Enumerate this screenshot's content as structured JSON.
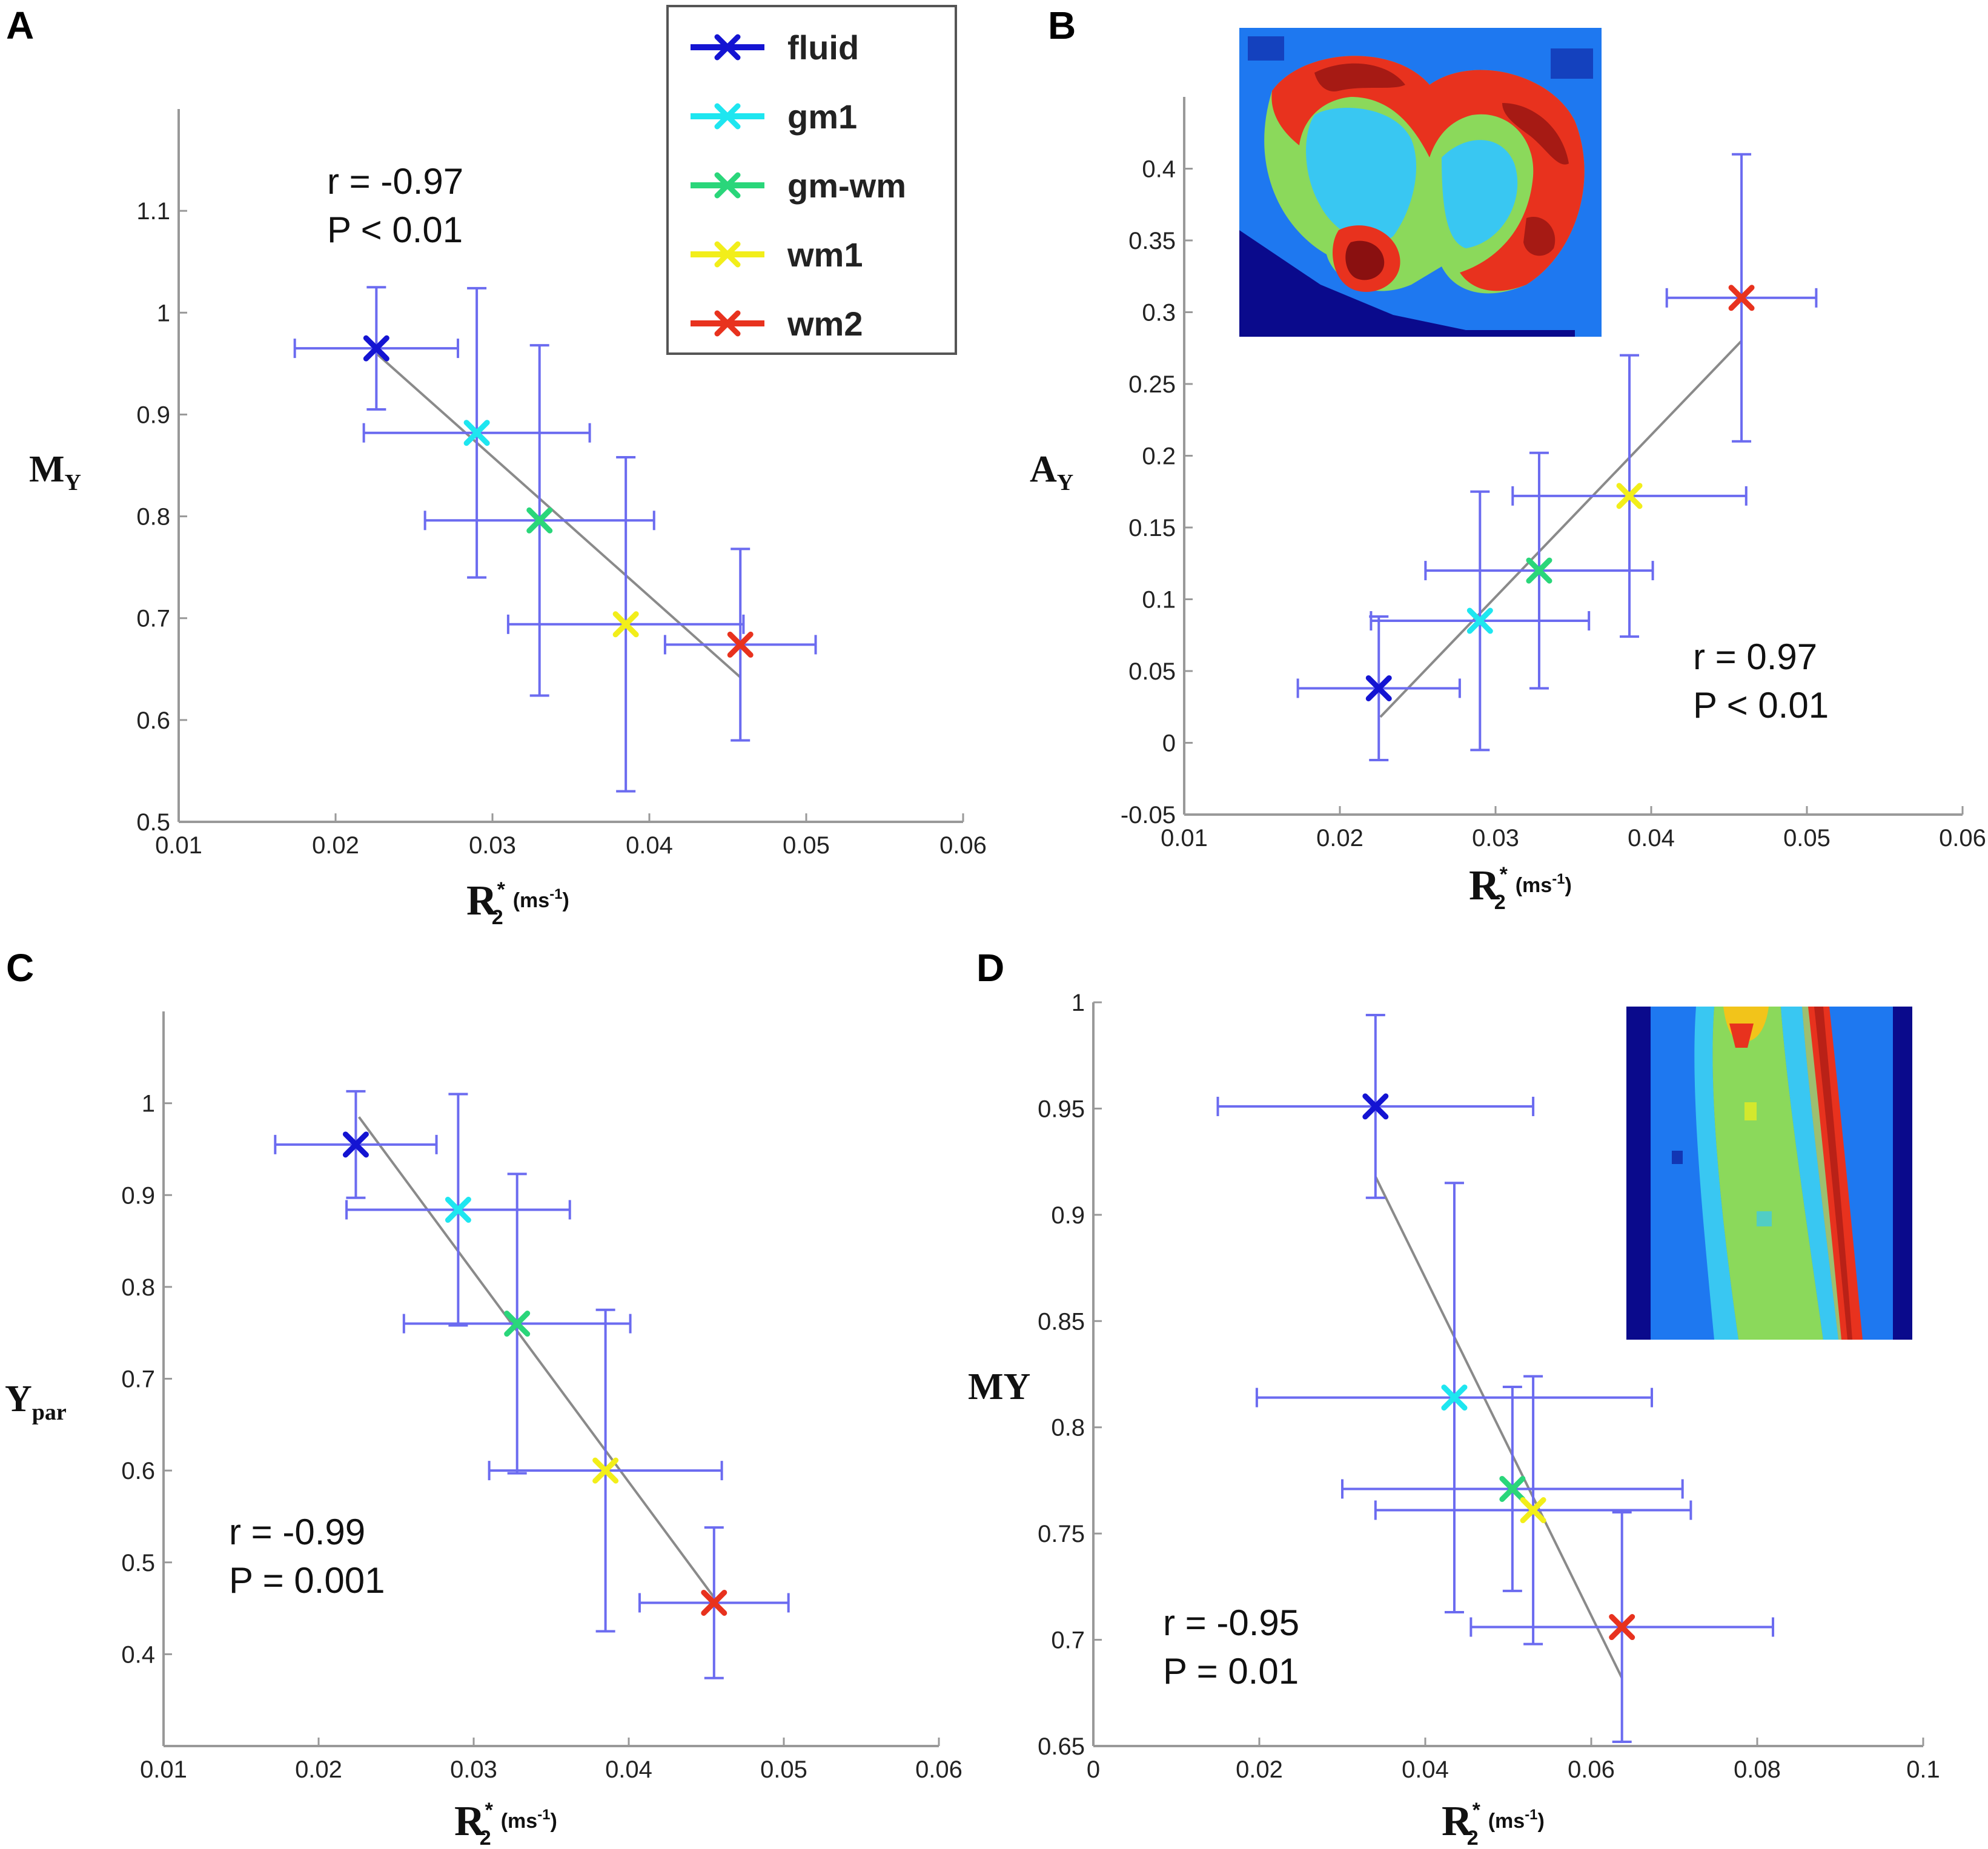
{
  "legend": {
    "items": [
      {
        "label": "fluid",
        "color": "#1414d2"
      },
      {
        "label": "gm1",
        "color": "#1ee6f0"
      },
      {
        "label": "gm-wm",
        "color": "#2ad67a"
      },
      {
        "label": "wm1",
        "color": "#f2ee1a"
      },
      {
        "label": "wm2",
        "color": "#e8321e"
      }
    ]
  },
  "colors": {
    "errorbar": "#6b6bf0",
    "fit": "#8a8a8a",
    "axis": "#999999"
  },
  "chart_data": [
    {
      "panel": "A",
      "type": "scatter",
      "ylabel_main": "M",
      "ylabel_sub": "Υ",
      "xlabel_main": "R",
      "xlabel_star": "*",
      "xlabel_sub2": "2",
      "xlabel_unit": "(ms",
      "xlabel_unit_sup": "-1",
      "xlabel_unit_end": ")",
      "xlim": [
        0.01,
        0.06
      ],
      "ylim": [
        0.5,
        1.2
      ],
      "xticks": [
        "0.01",
        "0.02",
        "0.03",
        "0.04",
        "0.05",
        "0.06"
      ],
      "yticks": [
        "0.5",
        "0.6",
        "0.7",
        "0.8",
        "0.9",
        "1",
        "1.1"
      ],
      "stats": [
        "r = -0.97",
        "P < 0.01"
      ],
      "points": [
        {
          "name": "fluid",
          "x": 0.0226,
          "y": 0.965,
          "xerr": 0.0052,
          "yerr": 0.06
        },
        {
          "name": "gm1",
          "x": 0.029,
          "y": 0.882,
          "xerr": 0.0072,
          "yerr": 0.142
        },
        {
          "name": "gm-wm",
          "x": 0.033,
          "y": 0.796,
          "xerr": 0.0073,
          "yerr": 0.172
        },
        {
          "name": "wm1",
          "x": 0.0385,
          "y": 0.694,
          "xerr": 0.0075,
          "yerr": 0.164
        },
        {
          "name": "wm2",
          "x": 0.0458,
          "y": 0.674,
          "xerr": 0.0048,
          "yerr": 0.094
        }
      ],
      "fit": {
        "x": [
          0.0226,
          0.0458
        ],
        "y": [
          0.96,
          0.642
        ]
      }
    },
    {
      "panel": "B",
      "type": "scatter",
      "ylabel_main": "A",
      "ylabel_sub": "Υ",
      "xlabel_main": "R",
      "xlabel_star": "*",
      "xlabel_sub2": "2",
      "xlabel_unit": "(ms",
      "xlabel_unit_sup": "-1",
      "xlabel_unit_end": ")",
      "xlim": [
        0.01,
        0.06
      ],
      "ylim": [
        -0.05,
        0.45
      ],
      "xticks": [
        "0.01",
        "0.02",
        "0.03",
        "0.04",
        "0.05",
        "0.06"
      ],
      "yticks": [
        "-0.05",
        "0",
        "0.05",
        "0.1",
        "0.15",
        "0.2",
        "0.25",
        "0.3",
        "0.35",
        "0.4"
      ],
      "stats": [
        "r = 0.97",
        "P < 0.01"
      ],
      "points": [
        {
          "name": "fluid",
          "x": 0.0225,
          "y": 0.038,
          "xerr": 0.0052,
          "yerr": 0.05
        },
        {
          "name": "gm1",
          "x": 0.029,
          "y": 0.085,
          "xerr": 0.007,
          "yerr": 0.09
        },
        {
          "name": "gm-wm",
          "x": 0.0328,
          "y": 0.12,
          "xerr": 0.0073,
          "yerr": 0.082
        },
        {
          "name": "wm1",
          "x": 0.0386,
          "y": 0.172,
          "xerr": 0.0075,
          "yerr": 0.098
        },
        {
          "name": "wm2",
          "x": 0.0458,
          "y": 0.31,
          "xerr": 0.0048,
          "yerr": 0.1
        }
      ],
      "fit": {
        "x": [
          0.0226,
          0.0458
        ],
        "y": [
          0.018,
          0.28
        ]
      }
    },
    {
      "panel": "C",
      "type": "scatter",
      "ylabel_main": "Υ",
      "ylabel_sub": "par",
      "xlabel_main": "R",
      "xlabel_star": "*",
      "xlabel_sub2": "2",
      "xlabel_unit": "(ms",
      "xlabel_unit_sup": "-1",
      "xlabel_unit_end": ")",
      "xlim": [
        0.01,
        0.06
      ],
      "ylim": [
        0.3,
        1.1
      ],
      "xticks": [
        "0.01",
        "0.02",
        "0.03",
        "0.04",
        "0.05",
        "0.06"
      ],
      "yticks": [
        "0.4",
        "0.5",
        "0.6",
        "0.7",
        "0.8",
        "0.9",
        "1"
      ],
      "stats": [
        "r = -0.99",
        "P = 0.001"
      ],
      "points": [
        {
          "name": "fluid",
          "x": 0.0224,
          "y": 0.955,
          "xerr": 0.0052,
          "yerr": 0.058
        },
        {
          "name": "gm1",
          "x": 0.029,
          "y": 0.884,
          "xerr": 0.0072,
          "yerr": 0.126
        },
        {
          "name": "gm-wm",
          "x": 0.0328,
          "y": 0.76,
          "xerr": 0.0073,
          "yerr": 0.163
        },
        {
          "name": "wm1",
          "x": 0.0385,
          "y": 0.6,
          "xerr": 0.0075,
          "yerr": 0.175
        },
        {
          "name": "wm2",
          "x": 0.0455,
          "y": 0.456,
          "xerr": 0.0048,
          "yerr": 0.082
        }
      ],
      "fit": {
        "x": [
          0.0226,
          0.0458
        ],
        "y": [
          0.985,
          0.455
        ]
      }
    },
    {
      "panel": "D",
      "type": "scatter",
      "ylabel_main": "MΥ",
      "ylabel_sub": "",
      "xlabel_main": "R",
      "xlabel_star": "*",
      "xlabel_sub2": "2",
      "xlabel_unit": "(ms",
      "xlabel_unit_sup": "-1",
      "xlabel_unit_end": ")",
      "xlim": [
        0,
        0.1
      ],
      "ylim": [
        0.65,
        1.0
      ],
      "xticks": [
        "0",
        "0.02",
        "0.04",
        "0.06",
        "0.08",
        "0.1"
      ],
      "yticks": [
        "0.65",
        "0.7",
        "0.75",
        "0.8",
        "0.85",
        "0.9",
        "0.95",
        "1"
      ],
      "stats": [
        "r = -0.95",
        "P = 0.01"
      ],
      "points": [
        {
          "name": "fluid",
          "x": 0.034,
          "y": 0.951,
          "xerr": 0.019,
          "yerr": 0.043
        },
        {
          "name": "gm1",
          "x": 0.0435,
          "y": 0.814,
          "xerr": 0.0238,
          "yerr": 0.101
        },
        {
          "name": "gm-wm",
          "x": 0.0505,
          "y": 0.771,
          "xerr": 0.0205,
          "yerr": 0.048
        },
        {
          "name": "wm1",
          "x": 0.053,
          "y": 0.761,
          "xerr": 0.019,
          "yerr": 0.063
        },
        {
          "name": "wm2",
          "x": 0.0637,
          "y": 0.706,
          "xerr": 0.0182,
          "yerr": 0.054
        }
      ],
      "fit": {
        "x": [
          0.034,
          0.0637
        ],
        "y": [
          0.918,
          0.682
        ]
      }
    }
  ]
}
